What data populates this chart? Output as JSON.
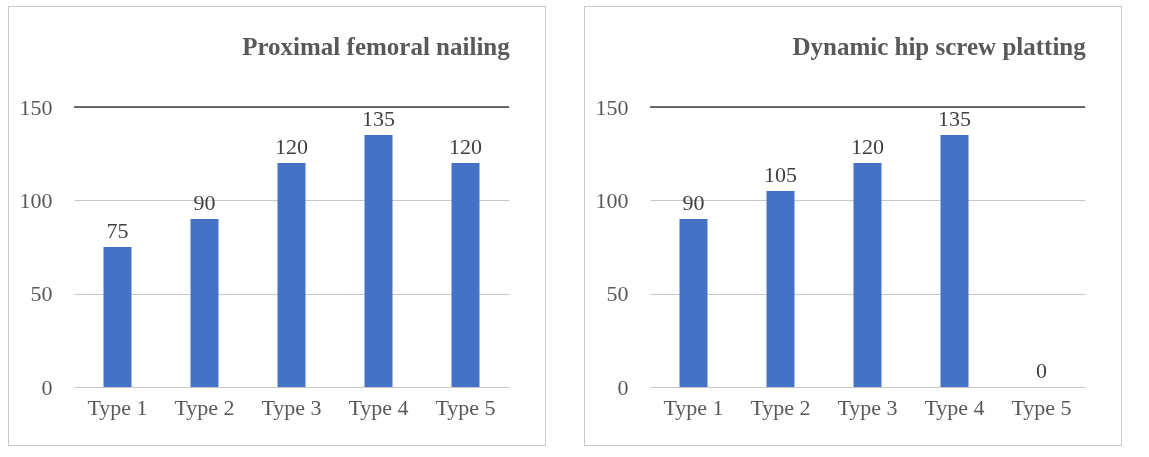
{
  "chart_data": [
    {
      "type": "bar",
      "title": "Proximal femoral nailing",
      "categories": [
        "Type 1",
        "Type 2",
        "Type 3",
        "Type 4",
        "Type 5"
      ],
      "values": [
        75,
        90,
        120,
        135,
        120
      ],
      "color": "#4472c4",
      "ylim": [
        0,
        150
      ],
      "yticks": [
        0,
        50,
        100,
        150
      ],
      "grid": "y",
      "data_labels": true,
      "ref_lines": [
        {
          "axis": "y",
          "value": 150,
          "color": "#404040"
        }
      ]
    },
    {
      "type": "bar",
      "title": "Dynamic  hip screw platting",
      "categories": [
        "Type 1",
        "Type 2",
        "Type 3",
        "Type 4",
        "Type 5"
      ],
      "values": [
        90,
        105,
        120,
        135,
        0
      ],
      "color": "#4472c4",
      "ylim": [
        0,
        150
      ],
      "yticks": [
        0,
        50,
        100,
        150
      ],
      "grid": "y",
      "data_labels": true,
      "ref_lines": [
        {
          "axis": "y",
          "value": 150,
          "color": "#404040"
        }
      ]
    }
  ]
}
